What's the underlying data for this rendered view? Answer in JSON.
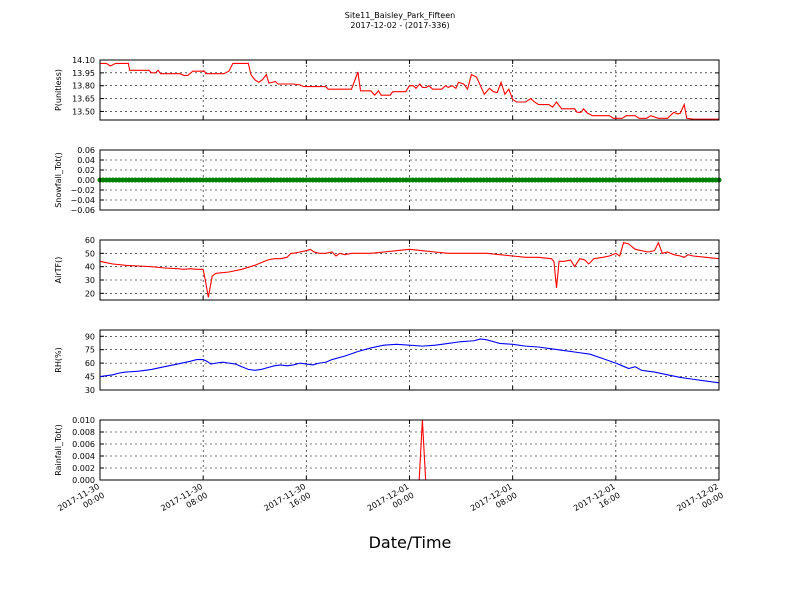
{
  "figure": {
    "title": "Site11_Baisley_Park_Fifteen",
    "subtitle": "2017-12-02 - (2017-336)",
    "xlabel": "Date/Time"
  },
  "chart_data": [
    {
      "type": "line",
      "ylabel": "P(unitless)",
      "color": "#ff0000",
      "ylim": [
        13.4,
        14.1
      ],
      "yticks": [
        "14.10",
        "13.95",
        "13.80",
        "13.65",
        "13.50"
      ],
      "ytick_values": [
        14.1,
        13.95,
        13.8,
        13.65,
        13.5
      ],
      "xlim": [
        0,
        48
      ],
      "xticks": [
        0,
        8,
        16,
        24,
        32,
        40,
        48
      ],
      "points": [
        [
          0,
          14.06
        ],
        [
          0.5,
          14.06
        ],
        [
          0.8,
          14.03
        ],
        [
          1.2,
          14.06
        ],
        [
          2,
          14.06
        ],
        [
          2.2,
          14.06
        ],
        [
          2.3,
          13.98
        ],
        [
          3.3,
          13.98
        ],
        [
          3.8,
          13.98
        ],
        [
          4,
          13.95
        ],
        [
          4.3,
          13.95
        ],
        [
          4.5,
          13.98
        ],
        [
          4.7,
          13.94
        ],
        [
          5.5,
          13.94
        ],
        [
          6.2,
          13.94
        ],
        [
          6.5,
          13.92
        ],
        [
          6.8,
          13.92
        ],
        [
          7.2,
          13.97
        ],
        [
          7.6,
          13.97
        ],
        [
          8.1,
          13.97
        ],
        [
          8.2,
          13.94
        ],
        [
          9.6,
          13.94
        ],
        [
          10,
          13.97
        ],
        [
          10.3,
          14.06
        ],
        [
          11.5,
          14.06
        ],
        [
          11.7,
          13.93
        ],
        [
          12,
          13.87
        ],
        [
          12.3,
          13.84
        ],
        [
          12.6,
          13.87
        ],
        [
          12.9,
          13.93
        ],
        [
          13.1,
          13.83
        ],
        [
          13.6,
          13.85
        ],
        [
          13.8,
          13.82
        ],
        [
          15,
          13.82
        ],
        [
          15.5,
          13.81
        ],
        [
          15.8,
          13.79
        ],
        [
          17.5,
          13.79
        ],
        [
          17.7,
          13.76
        ],
        [
          19.5,
          13.76
        ],
        [
          20,
          13.96
        ],
        [
          20.2,
          13.74
        ],
        [
          21,
          13.74
        ],
        [
          21.3,
          13.69
        ],
        [
          21.6,
          13.74
        ],
        [
          21.8,
          13.69
        ],
        [
          22.5,
          13.69
        ],
        [
          22.7,
          13.73
        ],
        [
          23.7,
          13.73
        ],
        [
          24,
          13.8
        ],
        [
          24.3,
          13.8
        ],
        [
          24.5,
          13.77
        ],
        [
          24.8,
          13.82
        ],
        [
          25,
          13.78
        ],
        [
          25.3,
          13.78
        ],
        [
          25.5,
          13.8
        ],
        [
          25.8,
          13.76
        ],
        [
          26.5,
          13.76
        ],
        [
          26.8,
          13.8
        ],
        [
          27,
          13.78
        ],
        [
          27.3,
          13.8
        ],
        [
          27.6,
          13.77
        ],
        [
          27.8,
          13.84
        ],
        [
          28.2,
          13.82
        ],
        [
          28.5,
          13.76
        ],
        [
          28.8,
          13.93
        ],
        [
          29.2,
          13.9
        ],
        [
          29.5,
          13.8
        ],
        [
          29.8,
          13.7
        ],
        [
          30.2,
          13.77
        ],
        [
          30.5,
          13.73
        ],
        [
          30.8,
          13.72
        ],
        [
          31.1,
          13.84
        ],
        [
          31.4,
          13.7
        ],
        [
          31.7,
          13.76
        ],
        [
          32,
          13.64
        ],
        [
          32.3,
          13.61
        ],
        [
          33,
          13.61
        ],
        [
          33.4,
          13.65
        ],
        [
          33.7,
          13.61
        ],
        [
          34,
          13.58
        ],
        [
          34.8,
          13.58
        ],
        [
          35.1,
          13.55
        ],
        [
          35.4,
          13.61
        ],
        [
          35.8,
          13.53
        ],
        [
          36.8,
          13.53
        ],
        [
          37,
          13.49
        ],
        [
          37.3,
          13.49
        ],
        [
          37.5,
          13.53
        ],
        [
          37.8,
          13.48
        ],
        [
          38.2,
          13.45
        ],
        [
          39.5,
          13.45
        ],
        [
          39.8,
          13.42
        ],
        [
          40.5,
          13.42
        ],
        [
          40.8,
          13.45
        ],
        [
          41.5,
          13.45
        ],
        [
          41.8,
          13.42
        ],
        [
          42.4,
          13.42
        ],
        [
          42.7,
          13.45
        ],
        [
          43.3,
          13.42
        ],
        [
          44,
          13.42
        ],
        [
          44.5,
          13.49
        ],
        [
          44.8,
          13.47
        ],
        [
          45,
          13.48
        ],
        [
          45.3,
          13.58
        ],
        [
          45.5,
          13.42
        ],
        [
          46,
          13.41
        ],
        [
          47,
          13.41
        ],
        [
          48,
          13.41
        ]
      ]
    },
    {
      "type": "line",
      "ylabel": "Snowfall_Tot()",
      "color": "#008000",
      "marker": "dot",
      "ylim": [
        -0.06,
        0.06
      ],
      "yticks": [
        "0.06",
        "0.04",
        "0.02",
        "0.00",
        "−0.02",
        "−0.04",
        "−0.06"
      ],
      "ytick_values": [
        0.06,
        0.04,
        0.02,
        0.0,
        -0.02,
        -0.04,
        -0.06
      ],
      "xlim": [
        0,
        48
      ],
      "xticks": [
        0,
        8,
        16,
        24,
        32,
        40,
        48
      ],
      "points": [
        [
          0,
          0
        ],
        [
          48,
          0
        ]
      ],
      "sample_interval_hours": 0.25
    },
    {
      "type": "line",
      "ylabel": "AirTF()",
      "color": "#ff0000",
      "ylim": [
        15,
        60
      ],
      "yticks": [
        "60",
        "50",
        "40",
        "30",
        "20"
      ],
      "ytick_values": [
        60,
        50,
        40,
        30,
        20
      ],
      "xlim": [
        0,
        48
      ],
      "xticks": [
        0,
        8,
        16,
        24,
        32,
        40,
        48
      ],
      "points": [
        [
          0,
          44
        ],
        [
          0.5,
          43
        ],
        [
          1,
          42
        ],
        [
          2,
          41
        ],
        [
          3,
          40.5
        ],
        [
          4,
          40
        ],
        [
          5,
          39
        ],
        [
          6,
          38.5
        ],
        [
          6.5,
          38
        ],
        [
          7,
          38.5
        ],
        [
          7.5,
          38
        ],
        [
          8,
          38
        ],
        [
          8.2,
          28
        ],
        [
          8.4,
          17
        ],
        [
          8.7,
          33
        ],
        [
          9,
          35
        ],
        [
          10,
          36
        ],
        [
          11,
          38
        ],
        [
          12,
          41
        ],
        [
          13,
          45
        ],
        [
          13.5,
          46
        ],
        [
          14,
          46
        ],
        [
          14.5,
          47
        ],
        [
          14.8,
          50
        ],
        [
          15,
          50
        ],
        [
          15.5,
          51
        ],
        [
          16,
          52
        ],
        [
          16.3,
          53
        ],
        [
          16.6,
          51
        ],
        [
          17,
          50
        ],
        [
          17.5,
          50
        ],
        [
          18,
          51
        ],
        [
          18.3,
          48
        ],
        [
          18.6,
          50
        ],
        [
          19,
          49
        ],
        [
          19.5,
          50
        ],
        [
          20,
          50
        ],
        [
          21,
          50
        ],
        [
          22,
          51
        ],
        [
          23,
          52
        ],
        [
          24,
          53
        ],
        [
          25,
          52
        ],
        [
          26,
          51
        ],
        [
          27,
          50
        ],
        [
          28,
          50
        ],
        [
          29,
          50
        ],
        [
          30,
          50
        ],
        [
          31,
          49
        ],
        [
          32,
          48
        ],
        [
          33,
          47
        ],
        [
          34,
          47
        ],
        [
          35,
          46
        ],
        [
          35.2,
          44
        ],
        [
          35.4,
          24
        ],
        [
          35.6,
          44
        ],
        [
          36,
          44
        ],
        [
          36.5,
          45
        ],
        [
          36.8,
          40
        ],
        [
          37.2,
          46
        ],
        [
          37.6,
          45
        ],
        [
          37.9,
          42
        ],
        [
          38.3,
          46
        ],
        [
          39,
          47
        ],
        [
          39.5,
          48
        ],
        [
          40,
          50
        ],
        [
          40.3,
          48
        ],
        [
          40.6,
          58
        ],
        [
          41,
          57
        ],
        [
          41.5,
          53
        ],
        [
          42,
          52
        ],
        [
          42.5,
          51
        ],
        [
          43,
          52
        ],
        [
          43.3,
          58
        ],
        [
          43.6,
          50
        ],
        [
          44,
          51
        ],
        [
          44.5,
          49
        ],
        [
          45,
          48
        ],
        [
          45.3,
          47
        ],
        [
          45.6,
          49
        ],
        [
          46,
          48
        ],
        [
          47,
          47
        ],
        [
          48,
          46
        ]
      ]
    },
    {
      "type": "line",
      "ylabel": "RH(%)",
      "color": "#0000ff",
      "ylim": [
        30,
        97
      ],
      "yticks": [
        "90",
        "75",
        "60",
        "45",
        "30"
      ],
      "ytick_values": [
        90,
        75,
        60,
        45,
        30
      ],
      "xlim": [
        0,
        48
      ],
      "xticks": [
        0,
        8,
        16,
        24,
        32,
        40,
        48
      ],
      "points": [
        [
          0,
          45
        ],
        [
          0.5,
          46
        ],
        [
          1,
          47
        ],
        [
          1.5,
          49
        ],
        [
          2,
          50
        ],
        [
          3,
          51
        ],
        [
          4,
          53
        ],
        [
          5,
          56
        ],
        [
          6,
          59
        ],
        [
          7,
          62
        ],
        [
          7.5,
          64
        ],
        [
          8,
          64
        ],
        [
          8.3,
          62
        ],
        [
          8.6,
          59
        ],
        [
          9,
          60
        ],
        [
          9.5,
          61
        ],
        [
          10,
          60
        ],
        [
          10.5,
          59
        ],
        [
          11,
          56
        ],
        [
          11.5,
          53
        ],
        [
          12,
          52
        ],
        [
          12.5,
          53
        ],
        [
          13,
          55
        ],
        [
          13.5,
          57
        ],
        [
          14,
          58
        ],
        [
          14.5,
          57
        ],
        [
          15,
          58
        ],
        [
          15.5,
          60
        ],
        [
          16,
          59
        ],
        [
          16.5,
          58
        ],
        [
          17,
          60
        ],
        [
          17.5,
          61
        ],
        [
          18,
          64
        ],
        [
          19,
          68
        ],
        [
          20,
          73
        ],
        [
          21,
          77
        ],
        [
          22,
          80
        ],
        [
          23,
          81
        ],
        [
          24,
          80
        ],
        [
          25,
          79
        ],
        [
          26,
          80
        ],
        [
          27,
          82
        ],
        [
          28,
          84
        ],
        [
          29,
          85
        ],
        [
          29.5,
          87
        ],
        [
          30,
          86
        ],
        [
          30.5,
          84
        ],
        [
          31,
          82
        ],
        [
          32,
          81
        ],
        [
          33,
          79
        ],
        [
          34,
          78
        ],
        [
          35,
          76
        ],
        [
          36,
          74
        ],
        [
          37,
          72
        ],
        [
          38,
          70
        ],
        [
          39,
          65
        ],
        [
          40,
          60
        ],
        [
          40.5,
          57
        ],
        [
          41,
          54
        ],
        [
          41.5,
          56
        ],
        [
          42,
          52
        ],
        [
          43,
          50
        ],
        [
          44,
          47
        ],
        [
          45,
          44
        ],
        [
          46,
          42
        ],
        [
          47,
          40
        ],
        [
          48,
          38
        ]
      ]
    },
    {
      "type": "line",
      "ylabel": "Rainfall_Tot()",
      "color": "#ff0000",
      "ylim": [
        0,
        0.01
      ],
      "yticks": [
        "0.010",
        "0.008",
        "0.006",
        "0.004",
        "0.002",
        "0.000"
      ],
      "ytick_values": [
        0.01,
        0.008,
        0.006,
        0.004,
        0.002,
        0.0
      ],
      "xlim": [
        0,
        48
      ],
      "xticks": [
        0,
        8,
        16,
        24,
        32,
        40,
        48
      ],
      "points": [
        [
          0,
          0
        ],
        [
          24.75,
          0
        ],
        [
          25,
          0.01
        ],
        [
          25.25,
          0
        ],
        [
          48,
          0
        ]
      ]
    }
  ],
  "xtick_labels": [
    [
      "2017-11-30",
      "00:00"
    ],
    [
      "2017-11-30",
      "08:00"
    ],
    [
      "2017-11-30",
      "16:00"
    ],
    [
      "2017-12-01",
      "00:00"
    ],
    [
      "2017-12-01",
      "08:00"
    ],
    [
      "2017-12-01",
      "16:00"
    ],
    [
      "2017-12-02",
      "00:00"
    ]
  ]
}
